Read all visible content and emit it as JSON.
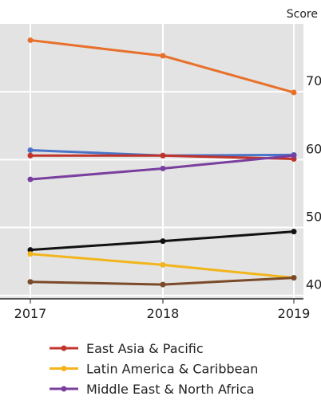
{
  "chart_data": {
    "type": "line",
    "y_label": "Score",
    "categories": [
      "2017",
      "2018",
      "2019"
    ],
    "series": [
      {
        "color": "#e8702a",
        "values": [
          77.6,
          75.3,
          69.9
        ]
      },
      {
        "color": "#4a74c9",
        "values": [
          61.4,
          60.6,
          60.7
        ]
      },
      {
        "name": "East Asia & Pacific",
        "color": "#c0342c",
        "values": [
          60.6,
          60.6,
          60.1
        ]
      },
      {
        "name": "Middle East & North Africa",
        "color": "#7a3f9e",
        "values": [
          57.1,
          58.7,
          60.6
        ]
      },
      {
        "color": "#111111",
        "values": [
          46.7,
          48.0,
          49.4
        ]
      },
      {
        "name": "Latin America & Caribbean",
        "color": "#f2b51c",
        "values": [
          46.1,
          44.5,
          42.6
        ]
      },
      {
        "color": "#7a4a2a",
        "values": [
          42.0,
          41.6,
          42.6
        ]
      }
    ],
    "legend_order": [
      2,
      5,
      3
    ],
    "ylim": [
      39.5,
      80
    ],
    "yticks": [
      40,
      50,
      60,
      70
    ],
    "grid": true
  }
}
